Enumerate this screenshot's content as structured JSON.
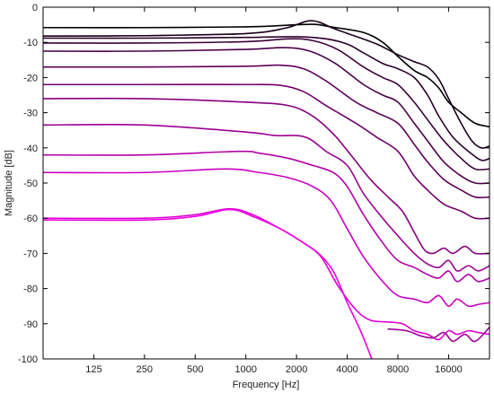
{
  "chart_data": {
    "type": "line",
    "title": "",
    "xlabel": "Frequency [Hz]",
    "ylabel": "Magnitude [dB]",
    "xscale": "log",
    "xlim": [
      62.5,
      28000
    ],
    "ylim": [
      -100,
      0
    ],
    "xticks": [
      125,
      250,
      500,
      1000,
      2000,
      4000,
      8000,
      16000
    ],
    "xtick_labels": [
      "125",
      "250",
      "500",
      "1000",
      "2000",
      "4000",
      "8000",
      "16000"
    ],
    "yticks": [
      0,
      -10,
      -20,
      -30,
      -40,
      -50,
      -60,
      -70,
      -80,
      -90,
      -100
    ],
    "ytick_labels": [
      "0",
      "-10",
      "-20",
      "-30",
      "-40",
      "-50",
      "-60",
      "-70",
      "-80",
      "-90",
      "-100"
    ],
    "grid": false,
    "legend": "none",
    "series": [
      {
        "color": "#000000",
        "points": [
          [
            62.5,
            -5.8
          ],
          [
            250,
            -5.8
          ],
          [
            1000,
            -5.6
          ],
          [
            2000,
            -5.0
          ],
          [
            2600,
            -4.9
          ],
          [
            3200,
            -5.6
          ],
          [
            5000,
            -7.2
          ],
          [
            6500,
            -10
          ],
          [
            8000,
            -14
          ],
          [
            10000,
            -18
          ],
          [
            12000,
            -20
          ],
          [
            14000,
            -23
          ],
          [
            16000,
            -27
          ],
          [
            19000,
            -30
          ],
          [
            23000,
            -33
          ],
          [
            28000,
            -34
          ]
        ]
      },
      {
        "color": "#1a0019",
        "points": [
          [
            62.5,
            -8.2
          ],
          [
            250,
            -8.1
          ],
          [
            1000,
            -7.5
          ],
          [
            1700,
            -6.0
          ],
          [
            2300,
            -4.0
          ],
          [
            2700,
            -4.2
          ],
          [
            3300,
            -6.0
          ],
          [
            4500,
            -8.3
          ],
          [
            6000,
            -10.5
          ],
          [
            8000,
            -13.5
          ],
          [
            10000,
            -15.5
          ],
          [
            12000,
            -17
          ],
          [
            14000,
            -20.5
          ],
          [
            16000,
            -26
          ],
          [
            19000,
            -33
          ],
          [
            22000,
            -38
          ],
          [
            25000,
            -40
          ],
          [
            28000,
            -39.5
          ]
        ]
      },
      {
        "color": "#2b002a",
        "points": [
          [
            62.5,
            -8.8
          ],
          [
            250,
            -8.8
          ],
          [
            1000,
            -8.6
          ],
          [
            2000,
            -8.4
          ],
          [
            3000,
            -9.0
          ],
          [
            4000,
            -10.5
          ],
          [
            5000,
            -13
          ],
          [
            6500,
            -16
          ],
          [
            8000,
            -17.5
          ],
          [
            10000,
            -20
          ],
          [
            12000,
            -25
          ],
          [
            14000,
            -31
          ],
          [
            17000,
            -37
          ],
          [
            21000,
            -41
          ],
          [
            25000,
            -43.5
          ],
          [
            28000,
            -43
          ]
        ]
      },
      {
        "color": "#3b0039",
        "points": [
          [
            62.5,
            -10.2
          ],
          [
            250,
            -10.2
          ],
          [
            1000,
            -9.8
          ],
          [
            1800,
            -9.0
          ],
          [
            2500,
            -9.5
          ],
          [
            3500,
            -12
          ],
          [
            5000,
            -17
          ],
          [
            6500,
            -20
          ],
          [
            8000,
            -22
          ],
          [
            10000,
            -27
          ],
          [
            12000,
            -32
          ],
          [
            15000,
            -38
          ],
          [
            19000,
            -43
          ],
          [
            23000,
            -46
          ],
          [
            28000,
            -46
          ]
        ]
      },
      {
        "color": "#4c0049",
        "points": [
          [
            62.5,
            -12.5
          ],
          [
            250,
            -12.5
          ],
          [
            1000,
            -12.0
          ],
          [
            1700,
            -11.5
          ],
          [
            2400,
            -12.5
          ],
          [
            3400,
            -16
          ],
          [
            5000,
            -22
          ],
          [
            6500,
            -25
          ],
          [
            8000,
            -27
          ],
          [
            10000,
            -33
          ],
          [
            12000,
            -38
          ],
          [
            15000,
            -44
          ],
          [
            19000,
            -48
          ],
          [
            23000,
            -50
          ],
          [
            28000,
            -50
          ]
        ]
      },
      {
        "color": "#5e0059",
        "points": [
          [
            62.5,
            -17
          ],
          [
            250,
            -17
          ],
          [
            1000,
            -16.8
          ],
          [
            1600,
            -16.5
          ],
          [
            2200,
            -17.5
          ],
          [
            3000,
            -21
          ],
          [
            4500,
            -27
          ],
          [
            6000,
            -30
          ],
          [
            8000,
            -33
          ],
          [
            10000,
            -39
          ],
          [
            12000,
            -44
          ],
          [
            15000,
            -49
          ],
          [
            19000,
            -52
          ],
          [
            23000,
            -54
          ],
          [
            28000,
            -54
          ]
        ]
      },
      {
        "color": "#71006b",
        "points": [
          [
            62.5,
            -22
          ],
          [
            250,
            -22
          ],
          [
            1000,
            -22.0
          ],
          [
            1600,
            -22.2
          ],
          [
            2200,
            -24
          ],
          [
            3000,
            -28
          ],
          [
            4500,
            -33
          ],
          [
            6000,
            -37
          ],
          [
            8000,
            -41
          ],
          [
            10000,
            -48
          ],
          [
            12000,
            -52
          ],
          [
            15000,
            -56
          ],
          [
            19000,
            -58
          ],
          [
            23000,
            -60
          ],
          [
            28000,
            -60
          ]
        ]
      },
      {
        "color": "#86007f",
        "points": [
          [
            62.5,
            -26
          ],
          [
            250,
            -26
          ],
          [
            1000,
            -27
          ],
          [
            1800,
            -28
          ],
          [
            2500,
            -31
          ],
          [
            3300,
            -36
          ],
          [
            4200,
            -42
          ],
          [
            5500,
            -49
          ],
          [
            7000,
            -54
          ],
          [
            8500,
            -58
          ],
          [
            10000,
            -64
          ],
          [
            11500,
            -69
          ],
          [
            13000,
            -70
          ],
          [
            15000,
            -68.5
          ],
          [
            17000,
            -70
          ],
          [
            20000,
            -68
          ],
          [
            23000,
            -70
          ],
          [
            28000,
            -70
          ]
        ]
      },
      {
        "color": "#9b0093",
        "points": [
          [
            62.5,
            -33.5
          ],
          [
            250,
            -33.5
          ],
          [
            1000,
            -35.5
          ],
          [
            1500,
            -36.5
          ],
          [
            2000,
            -36.5
          ],
          [
            2400,
            -37.5
          ],
          [
            3000,
            -41
          ],
          [
            4000,
            -45
          ],
          [
            5000,
            -53
          ],
          [
            6500,
            -60
          ],
          [
            8000,
            -65
          ],
          [
            10000,
            -70
          ],
          [
            12000,
            -73
          ],
          [
            14000,
            -74
          ],
          [
            16000,
            -72
          ],
          [
            18000,
            -75
          ],
          [
            21000,
            -73.5
          ],
          [
            24000,
            -75
          ],
          [
            28000,
            -73.5
          ]
        ]
      },
      {
        "color": "#b200a9",
        "points": [
          [
            62.5,
            -42
          ],
          [
            250,
            -42
          ],
          [
            900,
            -41
          ],
          [
            1200,
            -41.5
          ],
          [
            1800,
            -43
          ],
          [
            2500,
            -45
          ],
          [
            3300,
            -47
          ],
          [
            4000,
            -51
          ],
          [
            5000,
            -59
          ],
          [
            6500,
            -67
          ],
          [
            8000,
            -72
          ],
          [
            10000,
            -74
          ],
          [
            12000,
            -76
          ],
          [
            14000,
            -77
          ],
          [
            16000,
            -75
          ],
          [
            18000,
            -78
          ],
          [
            21000,
            -76
          ],
          [
            24000,
            -78
          ],
          [
            28000,
            -77
          ]
        ]
      },
      {
        "color": "#c900bf",
        "points": [
          [
            62.5,
            -47
          ],
          [
            250,
            -47
          ],
          [
            750,
            -46
          ],
          [
            1200,
            -47
          ],
          [
            1800,
            -48.5
          ],
          [
            2500,
            -51
          ],
          [
            3200,
            -55
          ],
          [
            4000,
            -63
          ],
          [
            5000,
            -71
          ],
          [
            6500,
            -78
          ],
          [
            8000,
            -82
          ],
          [
            10000,
            -83
          ],
          [
            12000,
            -84
          ],
          [
            14000,
            -82
          ],
          [
            16000,
            -85
          ],
          [
            18000,
            -83
          ],
          [
            21000,
            -85
          ],
          [
            24000,
            -84.5
          ],
          [
            28000,
            -84
          ]
        ]
      },
      {
        "color": "#dd00d2",
        "points": [
          [
            62.5,
            -60
          ],
          [
            250,
            -60
          ],
          [
            500,
            -59
          ],
          [
            800,
            -57.3
          ],
          [
            1100,
            -59
          ],
          [
            1600,
            -63
          ],
          [
            2200,
            -67
          ],
          [
            2800,
            -71
          ],
          [
            3500,
            -79
          ],
          [
            4500,
            -86
          ],
          [
            5500,
            -89
          ],
          [
            7000,
            -89.5
          ],
          [
            8500,
            -90
          ],
          [
            10000,
            -92
          ],
          [
            12000,
            -93
          ],
          [
            14000,
            -94.5
          ],
          [
            16000,
            -92
          ],
          [
            18000,
            -93
          ],
          [
            21000,
            -92
          ],
          [
            24000,
            -92.5
          ],
          [
            28000,
            -93
          ]
        ]
      },
      {
        "color": "#ef00e4",
        "points": [
          [
            62.5,
            -60.5
          ],
          [
            250,
            -60.5
          ],
          [
            500,
            -59.5
          ],
          [
            800,
            -57.5
          ],
          [
            1100,
            -59.5
          ],
          [
            1600,
            -63
          ],
          [
            2200,
            -67
          ],
          [
            2700,
            -70
          ],
          [
            3300,
            -75
          ],
          [
            4000,
            -84
          ],
          [
            4800,
            -92
          ],
          [
            5600,
            -100
          ]
        ]
      },
      {
        "color": "#a0009a",
        "points": [
          [
            7000,
            -91.5
          ],
          [
            9000,
            -92
          ],
          [
            11000,
            -93.5
          ],
          [
            13000,
            -94
          ],
          [
            15000,
            -92.5
          ],
          [
            17000,
            -95
          ],
          [
            20000,
            -93
          ],
          [
            23000,
            -95
          ],
          [
            28000,
            -91
          ]
        ]
      }
    ]
  }
}
